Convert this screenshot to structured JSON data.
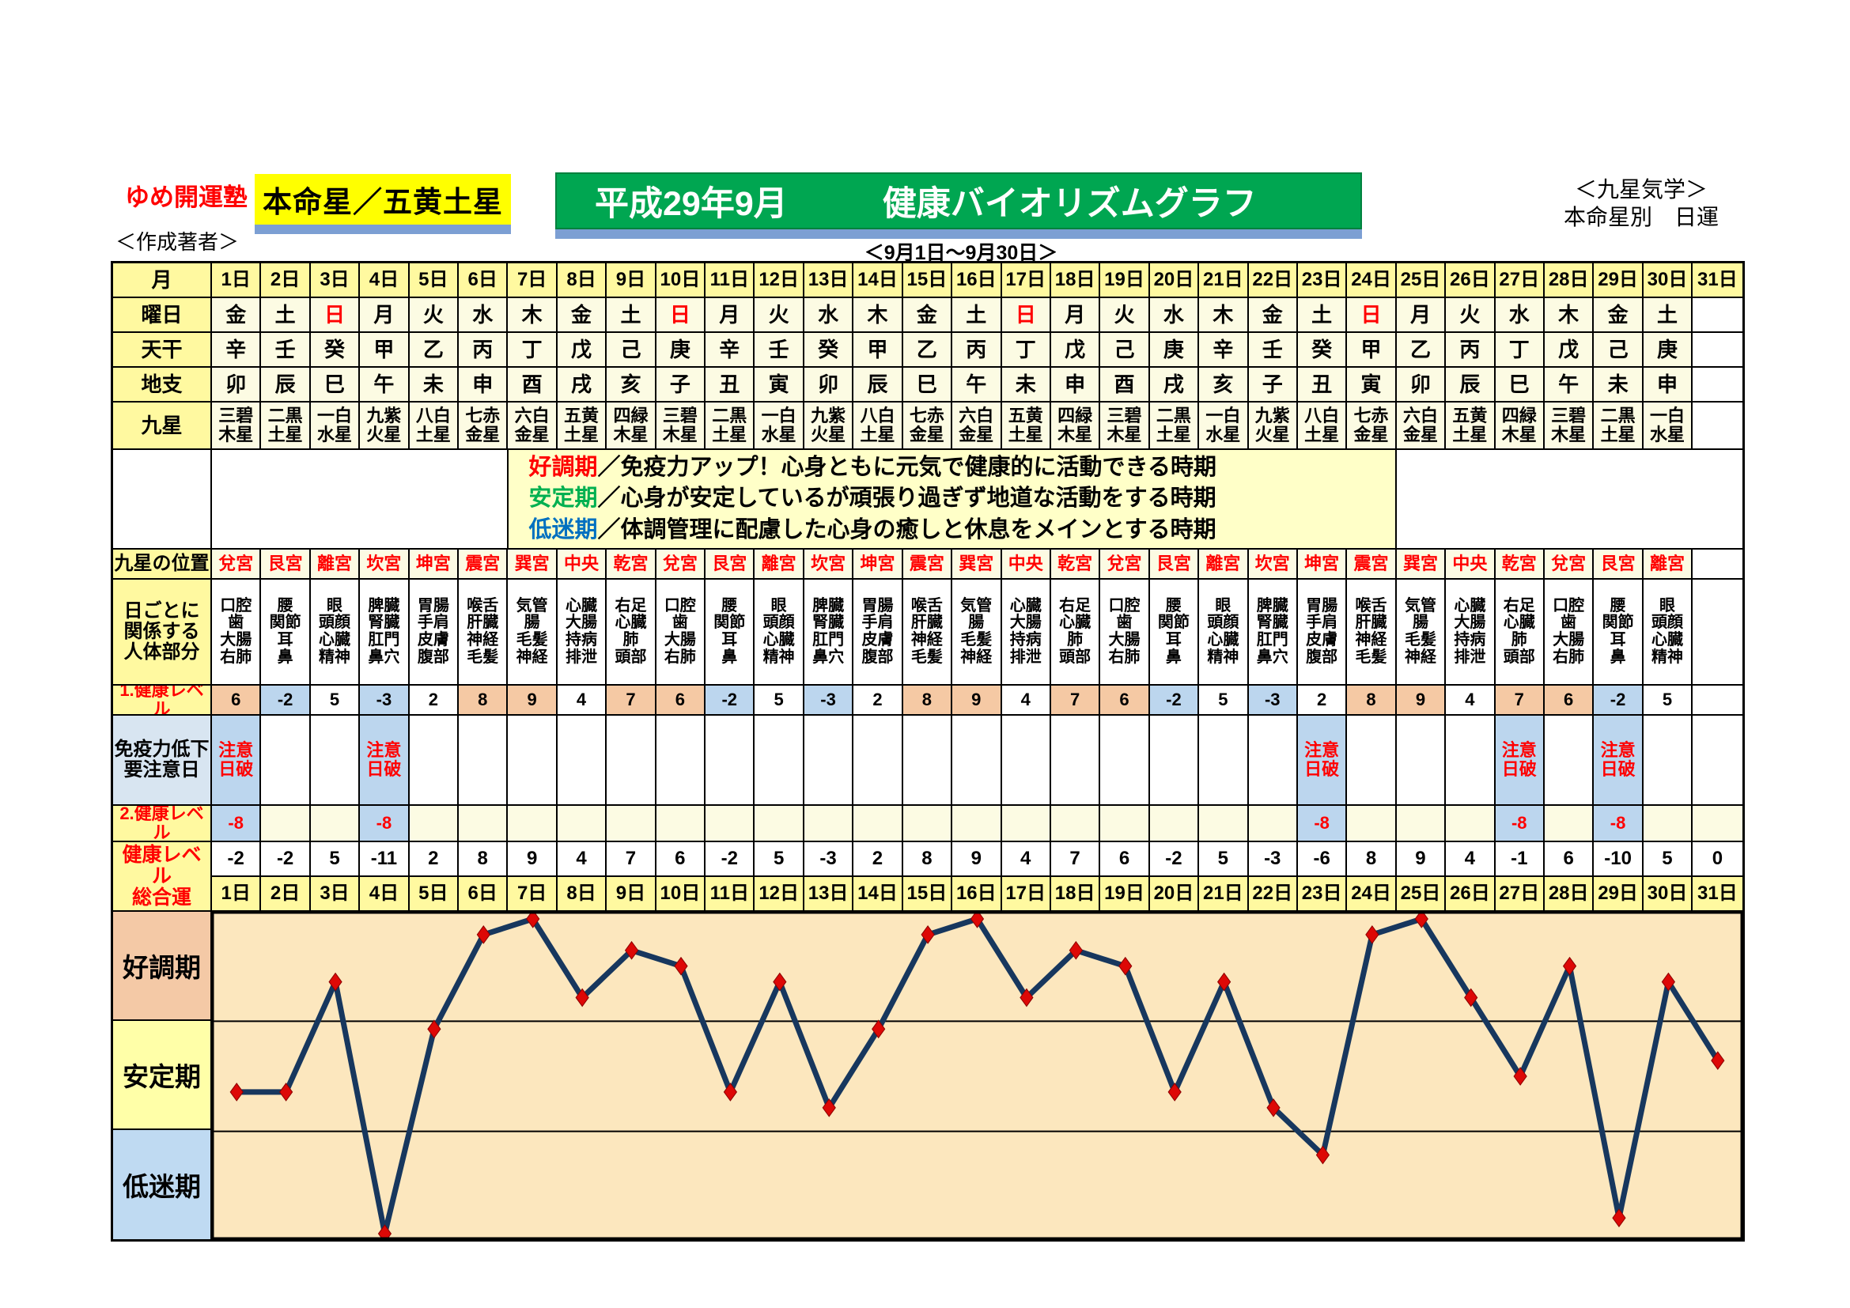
{
  "header": {
    "brand": "ゆめ開運塾",
    "author_note": "＜作成著者＞",
    "honmeisei_label": "本命星／五黄土星",
    "title_month": "平成29年9月",
    "title_main": "健康バイオリズムグラフ",
    "period": "＜9月1日～9月30日＞",
    "right_line1": "＜九星気学＞",
    "right_line2": "本命星別　日運"
  },
  "colors": {
    "yellow_label": "#fff9a0",
    "badge_yellow": "#ffff00",
    "banner_green": "#00a651",
    "underline_blue": "#7c9fd3",
    "cream_cell": "#fcfbe3",
    "legend_bg": "#ffffc8",
    "peach_cell": "#f5c9a4",
    "blue_cell": "#bcd6ee",
    "immunity_label_bg": "#d8e5f1",
    "red_text": "#ff0000",
    "green_text": "#00b050",
    "blue_text": "#0070c0",
    "plot_bg": "#fce7be",
    "zone_good_bg": "#f4c9a6",
    "zone_stable_bg": "#ffffa8",
    "zone_low_bg": "#bfdaf2",
    "line_navy": "#17375e",
    "marker_red": "#dd0806"
  },
  "calendar": {
    "month_label": "月",
    "day_labels": [
      "1日",
      "2日",
      "3日",
      "4日",
      "5日",
      "6日",
      "7日",
      "8日",
      "9日",
      "10日",
      "11日",
      "12日",
      "13日",
      "14日",
      "15日",
      "16日",
      "17日",
      "18日",
      "19日",
      "20日",
      "21日",
      "22日",
      "23日",
      "24日",
      "25日",
      "26日",
      "27日",
      "28日",
      "29日",
      "30日",
      "31日"
    ],
    "weekday_label": "曜日",
    "weekdays": [
      "金",
      "土",
      "日",
      "月",
      "火",
      "水",
      "木",
      "金",
      "土",
      "日",
      "月",
      "火",
      "水",
      "木",
      "金",
      "土",
      "日",
      "月",
      "火",
      "水",
      "木",
      "金",
      "土",
      "日",
      "月",
      "火",
      "水",
      "木",
      "金",
      "土",
      ""
    ],
    "sunday_mark": "日",
    "tenkan_label": "天干",
    "tenkan": [
      "辛",
      "壬",
      "癸",
      "甲",
      "乙",
      "丙",
      "丁",
      "戊",
      "己",
      "庚",
      "辛",
      "壬",
      "癸",
      "甲",
      "乙",
      "丙",
      "丁",
      "戊",
      "己",
      "庚",
      "辛",
      "壬",
      "癸",
      "甲",
      "乙",
      "丙",
      "丁",
      "戊",
      "己",
      "庚",
      ""
    ],
    "chishi_label": "地支",
    "chishi": [
      "卯",
      "辰",
      "巳",
      "午",
      "未",
      "申",
      "酉",
      "戌",
      "亥",
      "子",
      "丑",
      "寅",
      "卯",
      "辰",
      "巳",
      "午",
      "未",
      "申",
      "酉",
      "戌",
      "亥",
      "子",
      "丑",
      "寅",
      "卯",
      "辰",
      "巳",
      "午",
      "未",
      "申",
      ""
    ],
    "kyusei_label": "九星",
    "kyusei": [
      "三碧木星",
      "二黒土星",
      "一白水星",
      "九紫火星",
      "八白土星",
      "七赤金星",
      "六白金星",
      "五黄土星",
      "四緑木星",
      "三碧木星",
      "二黒土星",
      "一白水星",
      "九紫火星",
      "八白土星",
      "七赤金星",
      "六白金星",
      "五黄土星",
      "四緑木星",
      "三碧木星",
      "二黒土星",
      "一白水星",
      "九紫火星",
      "八白土星",
      "七赤金星",
      "六白金星",
      "五黄土星",
      "四緑木星",
      "三碧木星",
      "二黒土星",
      "一白水星",
      ""
    ]
  },
  "legend": {
    "lines": [
      {
        "term": "好調期",
        "color": "#ff0000",
        "desc": "／免疫力アップ！心身ともに元気で健康的に活動できる時期"
      },
      {
        "term": "安定期",
        "color": "#00b050",
        "desc": "／心身が安定しているが頑張り過ぎず地道な活動をする時期"
      },
      {
        "term": "低迷期",
        "color": "#0070c0",
        "desc": "／体調管理に配慮した心身の癒しと休息をメインとする時期"
      }
    ]
  },
  "positions": {
    "label": "九星の位置",
    "values": [
      "兌宮",
      "艮宮",
      "離宮",
      "坎宮",
      "坤宮",
      "震宮",
      "巽宮",
      "中央",
      "乾宮",
      "兌宮",
      "艮宮",
      "離宮",
      "坎宮",
      "坤宮",
      "震宮",
      "巽宮",
      "中央",
      "乾宮",
      "兌宮",
      "艮宮",
      "離宮",
      "坎宮",
      "坤宮",
      "震宮",
      "巽宮",
      "中央",
      "乾宮",
      "兌宮",
      "艮宮",
      "離宮",
      ""
    ]
  },
  "body_parts": {
    "label_lines": [
      "日ごとに",
      "関係する",
      "人体部分"
    ],
    "values": [
      [
        "口腔",
        "歯",
        "大腸",
        "右肺"
      ],
      [
        "腰",
        "関節",
        "耳",
        "鼻"
      ],
      [
        "眼",
        "頭顔",
        "心臓",
        "精神"
      ],
      [
        "脾臓",
        "腎臓",
        "肛門",
        "鼻穴"
      ],
      [
        "胃腸",
        "手肩",
        "皮膚",
        "腹部"
      ],
      [
        "喉舌",
        "肝臓",
        "神経",
        "毛髪"
      ],
      [
        "気管",
        "腸",
        "毛髪",
        "神経"
      ],
      [
        "心臓",
        "大腸",
        "持病",
        "排泄"
      ],
      [
        "右足",
        "心臓",
        "肺",
        "頭部"
      ],
      [
        "口腔",
        "歯",
        "大腸",
        "右肺"
      ],
      [
        "腰",
        "関節",
        "耳",
        "鼻"
      ],
      [
        "眼",
        "頭顔",
        "心臓",
        "精神"
      ],
      [
        "脾臓",
        "腎臓",
        "肛門",
        "鼻穴"
      ],
      [
        "胃腸",
        "手肩",
        "皮膚",
        "腹部"
      ],
      [
        "喉舌",
        "肝臓",
        "神経",
        "毛髪"
      ],
      [
        "気管",
        "腸",
        "毛髪",
        "神経"
      ],
      [
        "心臓",
        "大腸",
        "持病",
        "排泄"
      ],
      [
        "右足",
        "心臓",
        "肺",
        "頭部"
      ],
      [
        "口腔",
        "歯",
        "大腸",
        "右肺"
      ],
      [
        "腰",
        "関節",
        "耳",
        "鼻"
      ],
      [
        "眼",
        "頭顔",
        "心臓",
        "精神"
      ],
      [
        "脾臓",
        "腎臓",
        "肛門",
        "鼻穴"
      ],
      [
        "胃腸",
        "手肩",
        "皮膚",
        "腹部"
      ],
      [
        "喉舌",
        "肝臓",
        "神経",
        "毛髪"
      ],
      [
        "気管",
        "腸",
        "毛髪",
        "神経"
      ],
      [
        "心臓",
        "大腸",
        "持病",
        "排泄"
      ],
      [
        "右足",
        "心臓",
        "肺",
        "頭部"
      ],
      [
        "口腔",
        "歯",
        "大腸",
        "右肺"
      ],
      [
        "腰",
        "関節",
        "耳",
        "鼻"
      ],
      [
        "眼",
        "頭顔",
        "心臓",
        "精神"
      ],
      []
    ]
  },
  "health1": {
    "label": "1.健康レベル",
    "values": [
      6,
      -2,
      5,
      -3,
      2,
      8,
      9,
      4,
      7,
      6,
      -2,
      5,
      -3,
      2,
      8,
      9,
      4,
      7,
      6,
      -2,
      5,
      -3,
      2,
      8,
      9,
      4,
      7,
      6,
      -2,
      5,
      null
    ]
  },
  "immunity": {
    "label_lines": [
      "免疫力低下",
      "要注意日"
    ],
    "warning_lines": [
      "注意",
      "日破"
    ],
    "warning_days": [
      1,
      4,
      23,
      27,
      29
    ]
  },
  "health2": {
    "label": "2.健康レベル",
    "values": [
      -8,
      null,
      null,
      -8,
      null,
      null,
      null,
      null,
      null,
      null,
      null,
      null,
      null,
      null,
      null,
      null,
      null,
      null,
      null,
      null,
      null,
      null,
      -8,
      null,
      null,
      null,
      -8,
      null,
      -8,
      null,
      null
    ]
  },
  "total": {
    "label_lines": [
      "健康レベル",
      "総合運"
    ],
    "values": [
      -2,
      -2,
      5,
      -11,
      2,
      8,
      9,
      4,
      7,
      6,
      -2,
      5,
      -3,
      2,
      8,
      9,
      4,
      7,
      6,
      -2,
      5,
      -3,
      -6,
      8,
      9,
      4,
      -1,
      6,
      -10,
      5,
      0
    ]
  },
  "graph": {
    "zones": [
      {
        "label": "好調期",
        "bg": "#f4c9a6"
      },
      {
        "label": "安定期",
        "bg": "#ffffa8"
      },
      {
        "label": "低迷期",
        "bg": "#bfdaf2"
      }
    ]
  },
  "chart_data": {
    "type": "line",
    "title": "平成29年9月 健康バイオリズムグラフ",
    "xlabel": "日 (9月1日～9月30日)",
    "ylabel": "健康レベル総合運",
    "x_labels": [
      "1日",
      "2日",
      "3日",
      "4日",
      "5日",
      "6日",
      "7日",
      "8日",
      "9日",
      "10日",
      "11日",
      "12日",
      "13日",
      "14日",
      "15日",
      "16日",
      "17日",
      "18日",
      "19日",
      "20日",
      "21日",
      "22日",
      "23日",
      "24日",
      "25日",
      "26日",
      "27日",
      "28日",
      "29日",
      "30日",
      "31日"
    ],
    "series": [
      {
        "name": "健康レベル総合運",
        "values": [
          -2,
          -2,
          5,
          -11,
          2,
          8,
          9,
          4,
          7,
          6,
          -2,
          5,
          -3,
          2,
          8,
          9,
          4,
          7,
          6,
          -2,
          5,
          -3,
          -6,
          8,
          9,
          4,
          -1,
          6,
          -10,
          5,
          0
        ]
      }
    ],
    "ylim": [
      -11.35,
      9.45
    ],
    "zone_boundaries": [
      2.5,
      -4.5
    ],
    "zone_labels_top_to_bottom": [
      "好調期",
      "安定期",
      "低迷期"
    ],
    "grid": "zone lines only",
    "legend_position": "left",
    "marker": "red diamond",
    "line_color": "#17375e"
  }
}
